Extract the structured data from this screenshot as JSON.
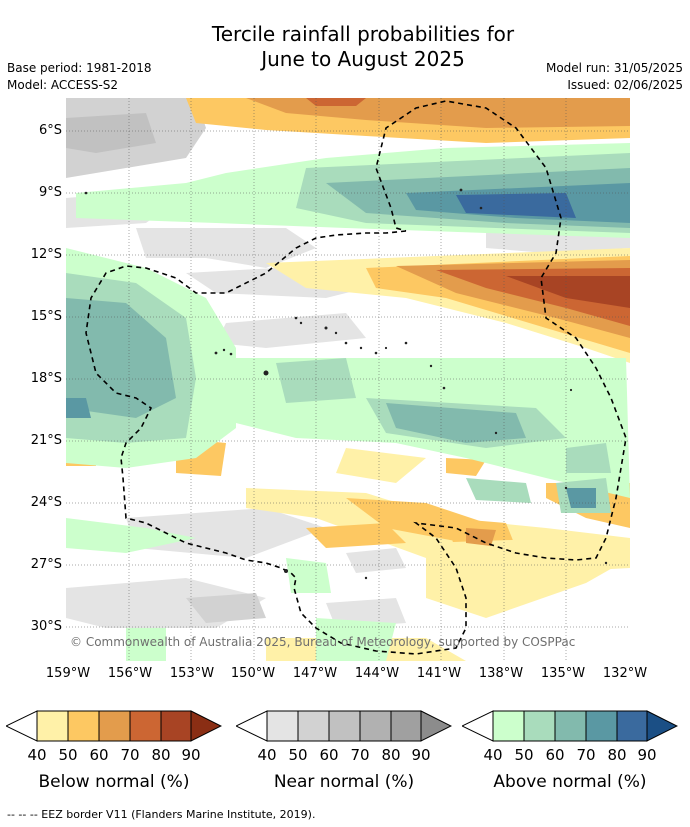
{
  "title_line1": "Tercile rainfall probabilities for",
  "title_line2": "June to August 2025",
  "base_period": "Base period: 1981-2018",
  "model": "Model: ACCESS-S2",
  "model_run": "Model run: 31/05/2025",
  "issued": "Issued: 02/06/2025",
  "map": {
    "lat_labels": [
      "6°S",
      "9°S",
      "12°S",
      "15°S",
      "18°S",
      "21°S",
      "24°S",
      "27°S",
      "30°S"
    ],
    "lon_labels": [
      "159°W",
      "156°W",
      "153°W",
      "150°W",
      "147°W",
      "144°W",
      "141°W",
      "138°W",
      "135°W",
      "132°W"
    ],
    "copyright": "© Commonwealth of Australia 2025, Bureau of Meteorology, supported by COSPPac"
  },
  "colorbars": [
    {
      "label": "Below normal (%)",
      "ticks": [
        "40",
        "50",
        "60",
        "70",
        "80",
        "90"
      ],
      "colors": [
        "#fff1a8",
        "#fdc862",
        "#e39c4c",
        "#cc6633",
        "#a84424",
        "#8a2e14"
      ],
      "icon": "below-normal-scale"
    },
    {
      "label": "Near normal (%)",
      "ticks": [
        "40",
        "50",
        "60",
        "70",
        "80",
        "90"
      ],
      "colors": [
        "#e4e4e4",
        "#d2d2d2",
        "#c1c1c1",
        "#b1b1b1",
        "#a0a0a0",
        "#8c8c8c"
      ],
      "icon": "near-normal-scale"
    },
    {
      "label": "Above normal (%)",
      "ticks": [
        "40",
        "50",
        "60",
        "70",
        "80",
        "90"
      ],
      "colors": [
        "#ccffcc",
        "#a9dcbc",
        "#82baad",
        "#5a98a3",
        "#3a6a9e",
        "#1b4f85"
      ],
      "icon": "above-normal-scale"
    }
  ],
  "footer": "--  --  -- EEZ border V11 (Flanders Marine Institute, 2019)."
}
